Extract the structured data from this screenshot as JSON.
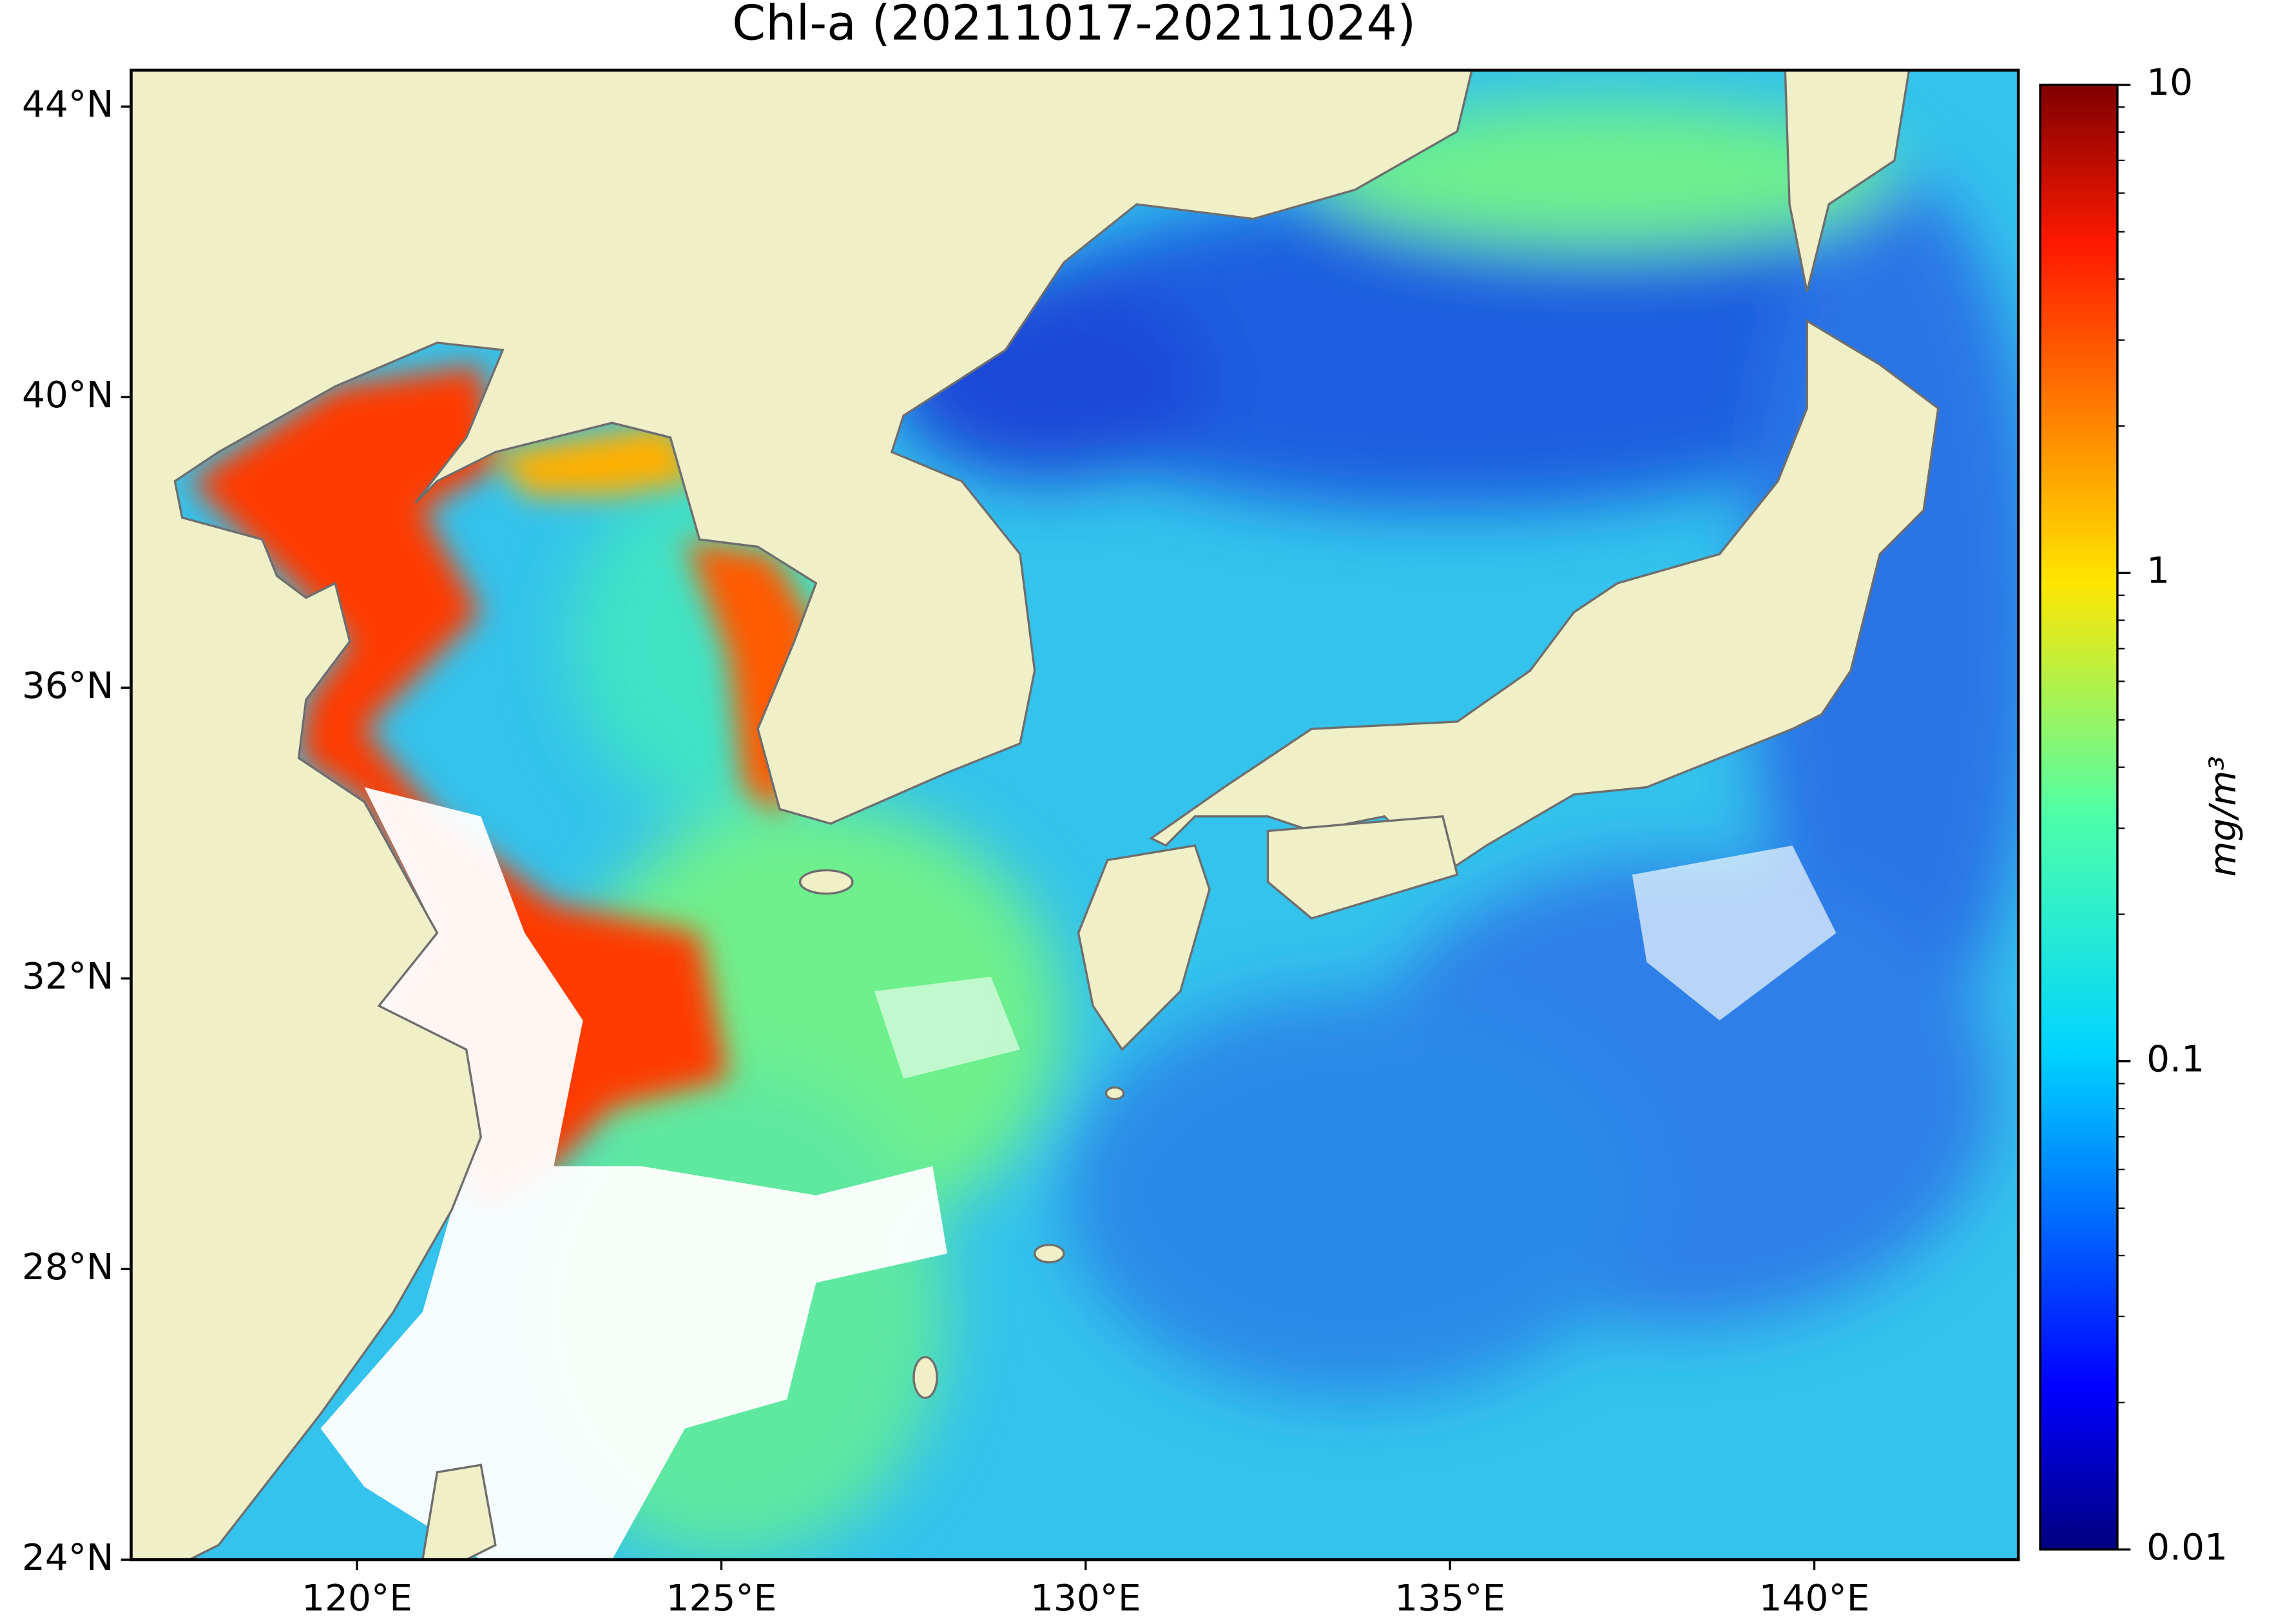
{
  "chart_data": {
    "type": "map",
    "title": "Chl-a (20211017-20211024)",
    "xlim": [
      116.9,
      142.8
    ],
    "ylim": [
      24,
      44.5
    ],
    "xticks": [
      {
        "value": 120,
        "label": "120°E"
      },
      {
        "value": 125,
        "label": "125°E"
      },
      {
        "value": 130,
        "label": "130°E"
      },
      {
        "value": 135,
        "label": "135°E"
      },
      {
        "value": 140,
        "label": "140°E"
      }
    ],
    "yticks": [
      {
        "value": 24,
        "label": "24°N"
      },
      {
        "value": 28,
        "label": "28°N"
      },
      {
        "value": 32,
        "label": "32°N"
      },
      {
        "value": 36,
        "label": "36°N"
      },
      {
        "value": 40,
        "label": "40°N"
      },
      {
        "value": 44,
        "label": "44°N"
      }
    ],
    "colorbar": {
      "label": "mg/m³",
      "lim": [
        0.01,
        10
      ],
      "ticks": [
        0.01,
        0.1,
        1,
        10
      ],
      "scale": "log",
      "colormap": "jet"
    }
  }
}
